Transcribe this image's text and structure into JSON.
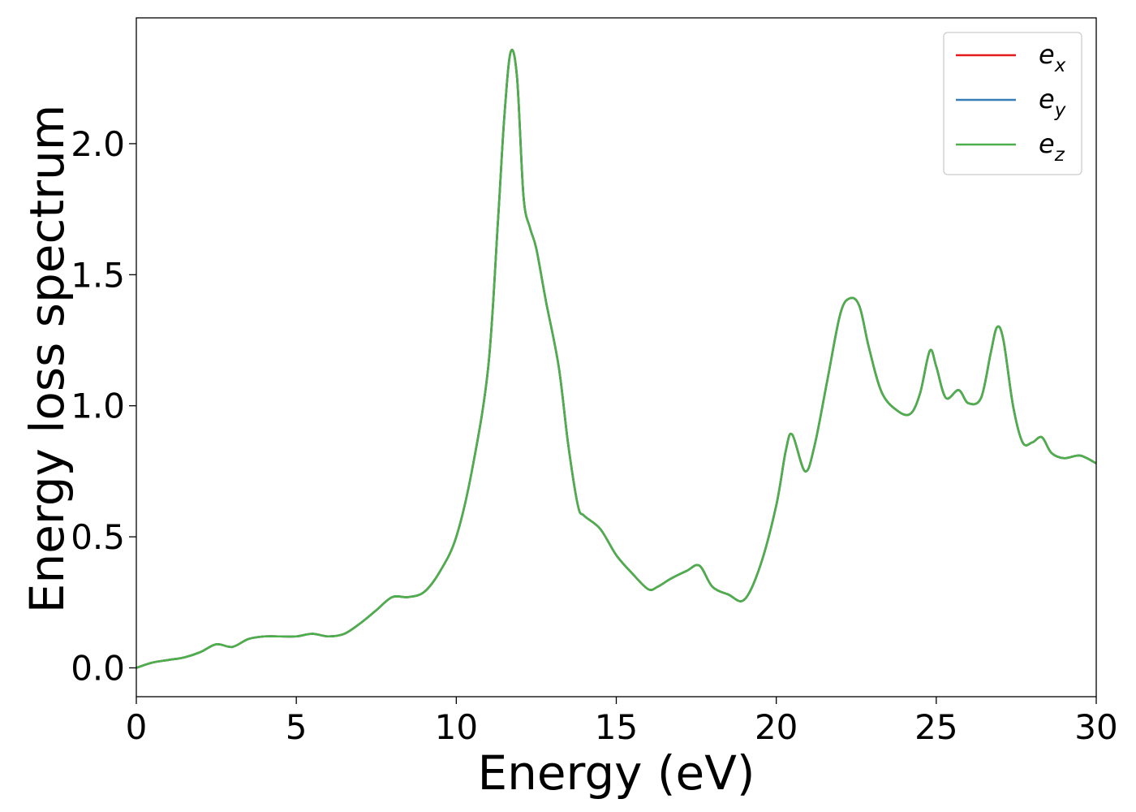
{
  "chart_data": {
    "type": "line",
    "title": "",
    "xlabel": "Energy (eV)",
    "ylabel": "Energy loss spectrum",
    "xlim": [
      0,
      30
    ],
    "ylim": [
      -0.11,
      2.48
    ],
    "xticks": [
      0,
      5,
      10,
      15,
      20,
      25,
      30
    ],
    "xtick_labels": [
      "0",
      "5",
      "10",
      "15",
      "20",
      "25",
      "30"
    ],
    "yticks": [
      0.0,
      0.5,
      1.0,
      1.5,
      2.0
    ],
    "ytick_labels": [
      "0.0",
      "0.5",
      "1.0",
      "1.5",
      "2.0"
    ],
    "grid": false,
    "legend_position": "top-right",
    "series": [
      {
        "name": "e_x",
        "label_main": "e",
        "label_sub": "x",
        "color": "#e41a1c",
        "x": [
          0,
          0.5,
          1,
          1.5,
          2,
          2.5,
          3,
          3.5,
          4,
          4.5,
          5,
          5.5,
          6,
          6.5,
          7,
          7.5,
          8,
          8.5,
          9,
          9.5,
          10,
          10.5,
          11,
          11.3,
          11.5,
          11.7,
          11.9,
          12.1,
          12.3,
          12.5,
          12.8,
          13.2,
          13.5,
          13.8,
          14,
          14.5,
          15,
          15.5,
          16,
          16.3,
          16.7,
          17.2,
          17.6,
          18,
          18.5,
          19,
          19.5,
          20,
          20.3,
          20.5,
          20.9,
          21.2,
          21.6,
          22,
          22.3,
          22.6,
          22.9,
          23.3,
          23.8,
          24.2,
          24.5,
          24.8,
          25,
          25.3,
          25.7,
          26,
          26.4,
          26.7,
          26.9,
          27.1,
          27.4,
          27.7,
          28,
          28.3,
          28.6,
          29,
          29.5,
          30
        ],
        "y": [
          0.0,
          0.02,
          0.03,
          0.04,
          0.06,
          0.09,
          0.08,
          0.11,
          0.12,
          0.12,
          0.12,
          0.13,
          0.12,
          0.13,
          0.17,
          0.22,
          0.27,
          0.27,
          0.29,
          0.37,
          0.5,
          0.76,
          1.15,
          1.7,
          2.1,
          2.35,
          2.25,
          1.8,
          1.68,
          1.6,
          1.4,
          1.15,
          0.85,
          0.62,
          0.58,
          0.53,
          0.43,
          0.36,
          0.3,
          0.31,
          0.34,
          0.37,
          0.39,
          0.31,
          0.28,
          0.26,
          0.39,
          0.62,
          0.83,
          0.89,
          0.75,
          0.85,
          1.1,
          1.35,
          1.41,
          1.38,
          1.22,
          1.05,
          0.98,
          0.97,
          1.05,
          1.21,
          1.15,
          1.03,
          1.06,
          1.01,
          1.03,
          1.2,
          1.3,
          1.25,
          1.0,
          0.86,
          0.86,
          0.88,
          0.82,
          0.8,
          0.81,
          0.78
        ]
      },
      {
        "name": "e_y",
        "label_main": "e",
        "label_sub": "y",
        "color": "#377eb8",
        "x": [
          0,
          0.5,
          1,
          1.5,
          2,
          2.5,
          3,
          3.5,
          4,
          4.5,
          5,
          5.5,
          6,
          6.5,
          7,
          7.5,
          8,
          8.5,
          9,
          9.5,
          10,
          10.5,
          11,
          11.3,
          11.5,
          11.7,
          11.9,
          12.1,
          12.3,
          12.5,
          12.8,
          13.2,
          13.5,
          13.8,
          14,
          14.5,
          15,
          15.5,
          16,
          16.3,
          16.7,
          17.2,
          17.6,
          18,
          18.5,
          19,
          19.5,
          20,
          20.3,
          20.5,
          20.9,
          21.2,
          21.6,
          22,
          22.3,
          22.6,
          22.9,
          23.3,
          23.8,
          24.2,
          24.5,
          24.8,
          25,
          25.3,
          25.7,
          26,
          26.4,
          26.7,
          26.9,
          27.1,
          27.4,
          27.7,
          28,
          28.3,
          28.6,
          29,
          29.5,
          30
        ],
        "y": [
          0.0,
          0.02,
          0.03,
          0.04,
          0.06,
          0.09,
          0.08,
          0.11,
          0.12,
          0.12,
          0.12,
          0.13,
          0.12,
          0.13,
          0.17,
          0.22,
          0.27,
          0.27,
          0.29,
          0.37,
          0.5,
          0.76,
          1.15,
          1.7,
          2.1,
          2.35,
          2.25,
          1.8,
          1.68,
          1.6,
          1.4,
          1.15,
          0.85,
          0.62,
          0.58,
          0.53,
          0.43,
          0.36,
          0.3,
          0.31,
          0.34,
          0.37,
          0.39,
          0.31,
          0.28,
          0.26,
          0.39,
          0.62,
          0.83,
          0.89,
          0.75,
          0.85,
          1.1,
          1.35,
          1.41,
          1.38,
          1.22,
          1.05,
          0.98,
          0.97,
          1.05,
          1.21,
          1.15,
          1.03,
          1.06,
          1.01,
          1.03,
          1.2,
          1.3,
          1.25,
          1.0,
          0.86,
          0.86,
          0.88,
          0.82,
          0.8,
          0.81,
          0.78
        ]
      },
      {
        "name": "e_z",
        "label_main": "e",
        "label_sub": "z",
        "color": "#4daf4a",
        "x": [
          0,
          0.5,
          1,
          1.5,
          2,
          2.5,
          3,
          3.5,
          4,
          4.5,
          5,
          5.5,
          6,
          6.5,
          7,
          7.5,
          8,
          8.5,
          9,
          9.5,
          10,
          10.5,
          11,
          11.3,
          11.5,
          11.7,
          11.9,
          12.1,
          12.3,
          12.5,
          12.8,
          13.2,
          13.5,
          13.8,
          14,
          14.5,
          15,
          15.5,
          16,
          16.3,
          16.7,
          17.2,
          17.6,
          18,
          18.5,
          19,
          19.5,
          20,
          20.3,
          20.5,
          20.9,
          21.2,
          21.6,
          22,
          22.3,
          22.6,
          22.9,
          23.3,
          23.8,
          24.2,
          24.5,
          24.8,
          25,
          25.3,
          25.7,
          26,
          26.4,
          26.7,
          26.9,
          27.1,
          27.4,
          27.7,
          28,
          28.3,
          28.6,
          29,
          29.5,
          30
        ],
        "y": [
          0.0,
          0.02,
          0.03,
          0.04,
          0.06,
          0.09,
          0.08,
          0.11,
          0.12,
          0.12,
          0.12,
          0.13,
          0.12,
          0.13,
          0.17,
          0.22,
          0.27,
          0.27,
          0.29,
          0.37,
          0.5,
          0.76,
          1.15,
          1.7,
          2.1,
          2.35,
          2.25,
          1.8,
          1.68,
          1.6,
          1.4,
          1.15,
          0.85,
          0.62,
          0.58,
          0.53,
          0.43,
          0.36,
          0.3,
          0.31,
          0.34,
          0.37,
          0.39,
          0.31,
          0.28,
          0.26,
          0.39,
          0.62,
          0.83,
          0.89,
          0.75,
          0.85,
          1.1,
          1.35,
          1.41,
          1.38,
          1.22,
          1.05,
          0.98,
          0.97,
          1.05,
          1.21,
          1.15,
          1.03,
          1.06,
          1.01,
          1.03,
          1.2,
          1.3,
          1.25,
          1.0,
          0.86,
          0.86,
          0.88,
          0.82,
          0.8,
          0.81,
          0.78
        ]
      }
    ]
  }
}
